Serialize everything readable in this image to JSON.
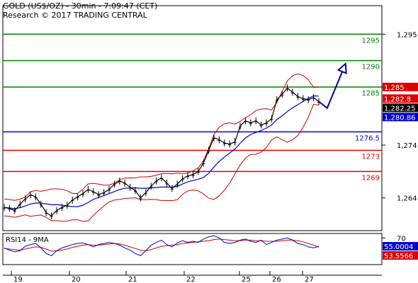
{
  "header": {
    "title": "GOLD (US$/OZ) - 30min - 7:09:47 (CET)",
    "subtitle": "Research © 2017 TRADING CENTRAL"
  },
  "indicator": {
    "label": "RSI14 - 9MA",
    "level": "70",
    "value_rsi": "55.0004",
    "value_ma": "53.5566"
  },
  "colors": {
    "price": "#000000",
    "bollinger": "#cc0000",
    "moving_average": "#0000cc",
    "resistance": "#008000",
    "pivot": "#0000cc",
    "support": "#dd0000",
    "arrow": "#000099",
    "tag_last": "#000000",
    "tag_blue": "#0000cc",
    "tag_red": "#dd0000"
  },
  "chart_data": [
    {
      "type": "line",
      "title": "GOLD (US$/OZ) - 30min - 7:09:47 (CET)",
      "y_ticks": [
        "1,295",
        "1,285",
        "1,274",
        "1,264"
      ],
      "y_tick_values": [
        1295,
        1285,
        1274,
        1264
      ],
      "x_ticks": [
        "19",
        "20",
        "21",
        "22",
        "25",
        "26",
        "27"
      ],
      "ylim": [
        1257.8,
        1300.4
      ],
      "grid": false,
      "levels": [
        {
          "label": "1295",
          "value": 1295,
          "kind": "resistance"
        },
        {
          "label": "1290",
          "value": 1290,
          "kind": "resistance"
        },
        {
          "label": "1285",
          "value": 1285,
          "kind": "resistance"
        },
        {
          "label": "1276.5",
          "value": 1276.5,
          "kind": "pivot"
        },
        {
          "label": "1273",
          "value": 1273,
          "kind": "support"
        },
        {
          "label": "1269",
          "value": 1269,
          "kind": "support"
        }
      ],
      "price_tags": [
        {
          "label": "1,282.25",
          "value": 1282.25,
          "kind": "last"
        },
        {
          "label": "1,280.86",
          "value": 1280.86,
          "kind": "blue"
        },
        {
          "label": "1,282.8",
          "value": 1282.8,
          "kind": "red"
        },
        {
          "label": "1,285",
          "value": 1285,
          "kind": "red"
        }
      ],
      "price_series": [
        {
          "x": 0,
          "y": 1262.2
        },
        {
          "x": 1,
          "y": 1262.0
        },
        {
          "x": 2,
          "y": 1261.6
        },
        {
          "x": 3,
          "y": 1262.8
        },
        {
          "x": 4,
          "y": 1263.8
        },
        {
          "x": 5,
          "y": 1264.6
        },
        {
          "x": 6,
          "y": 1264.2
        },
        {
          "x": 7,
          "y": 1262.8
        },
        {
          "x": 8,
          "y": 1261.2
        },
        {
          "x": 9,
          "y": 1260.6
        },
        {
          "x": 10,
          "y": 1261.6
        },
        {
          "x": 11,
          "y": 1262.2
        },
        {
          "x": 12,
          "y": 1262.6
        },
        {
          "x": 13,
          "y": 1263.6
        },
        {
          "x": 14,
          "y": 1264.2
        },
        {
          "x": 15,
          "y": 1264.8
        },
        {
          "x": 16,
          "y": 1265.6
        },
        {
          "x": 17,
          "y": 1265.2
        },
        {
          "x": 18,
          "y": 1264.6
        },
        {
          "x": 19,
          "y": 1265.0
        },
        {
          "x": 20,
          "y": 1265.6
        },
        {
          "x": 21,
          "y": 1266.6
        },
        {
          "x": 22,
          "y": 1267.2
        },
        {
          "x": 23,
          "y": 1266.8
        },
        {
          "x": 24,
          "y": 1266.0
        },
        {
          "x": 25,
          "y": 1265.4
        },
        {
          "x": 26,
          "y": 1264.0
        },
        {
          "x": 27,
          "y": 1265.0
        },
        {
          "x": 28,
          "y": 1266.2
        },
        {
          "x": 29,
          "y": 1267.2
        },
        {
          "x": 30,
          "y": 1267.8
        },
        {
          "x": 31,
          "y": 1266.8
        },
        {
          "x": 32,
          "y": 1265.8
        },
        {
          "x": 33,
          "y": 1266.6
        },
        {
          "x": 34,
          "y": 1267.6
        },
        {
          "x": 35,
          "y": 1268.2
        },
        {
          "x": 36,
          "y": 1268.4
        },
        {
          "x": 37,
          "y": 1269.0
        },
        {
          "x": 38,
          "y": 1270.6
        },
        {
          "x": 39,
          "y": 1273.0
        },
        {
          "x": 40,
          "y": 1275.4
        },
        {
          "x": 41,
          "y": 1275.0
        },
        {
          "x": 42,
          "y": 1274.4
        },
        {
          "x": 43,
          "y": 1274.2
        },
        {
          "x": 44,
          "y": 1274.6
        },
        {
          "x": 45,
          "y": 1277.6
        },
        {
          "x": 46,
          "y": 1278.6
        },
        {
          "x": 47,
          "y": 1278.2
        },
        {
          "x": 48,
          "y": 1278.6
        },
        {
          "x": 49,
          "y": 1277.8
        },
        {
          "x": 50,
          "y": 1278.2
        },
        {
          "x": 51,
          "y": 1279.0
        },
        {
          "x": 52,
          "y": 1282.6
        },
        {
          "x": 53,
          "y": 1283.6
        },
        {
          "x": 54,
          "y": 1284.8
        },
        {
          "x": 55,
          "y": 1284.0
        },
        {
          "x": 56,
          "y": 1283.2
        },
        {
          "x": 57,
          "y": 1282.8
        },
        {
          "x": 58,
          "y": 1282.6
        },
        {
          "x": 59,
          "y": 1283.0
        },
        {
          "x": 60,
          "y": 1282.25
        }
      ],
      "projection": [
        {
          "x": 60,
          "y": 1282.25
        },
        {
          "x": 61.6,
          "y": 1281.0
        },
        {
          "x": 65.1,
          "y": 1289.4
        }
      ]
    },
    {
      "type": "line",
      "title": "RSI14 - 9MA",
      "y_ticks": [
        "70"
      ],
      "ylim": [
        22,
        78
      ],
      "series": [
        {
          "name": "RSI14",
          "values": [
            52,
            48,
            45,
            47,
            55,
            58,
            60,
            52,
            42,
            38,
            47,
            52,
            55,
            58,
            60,
            61,
            58,
            54,
            58,
            60,
            62,
            60,
            57,
            52,
            48,
            42,
            38,
            47,
            57,
            62,
            66,
            58,
            54,
            61,
            65,
            62,
            64,
            62,
            68,
            72,
            74,
            70,
            62,
            60,
            62,
            66,
            68,
            64,
            62,
            66,
            58,
            62,
            66,
            68,
            70,
            66,
            60,
            58,
            54,
            52,
            55
          ]
        },
        {
          "name": "9MA",
          "values": [
            51,
            50,
            49,
            48,
            50,
            52,
            54,
            53,
            50,
            46,
            47,
            48,
            50,
            53,
            55,
            57,
            58,
            57,
            57,
            58,
            59,
            60,
            59,
            57,
            54,
            51,
            48,
            47,
            49,
            52,
            55,
            56,
            57,
            58,
            60,
            61,
            62,
            63,
            64,
            65,
            67,
            68,
            67,
            66,
            65,
            65,
            66,
            66,
            65,
            65,
            64,
            64,
            64,
            65,
            66,
            66,
            65,
            63,
            60,
            57,
            53.6
          ]
        }
      ]
    }
  ]
}
